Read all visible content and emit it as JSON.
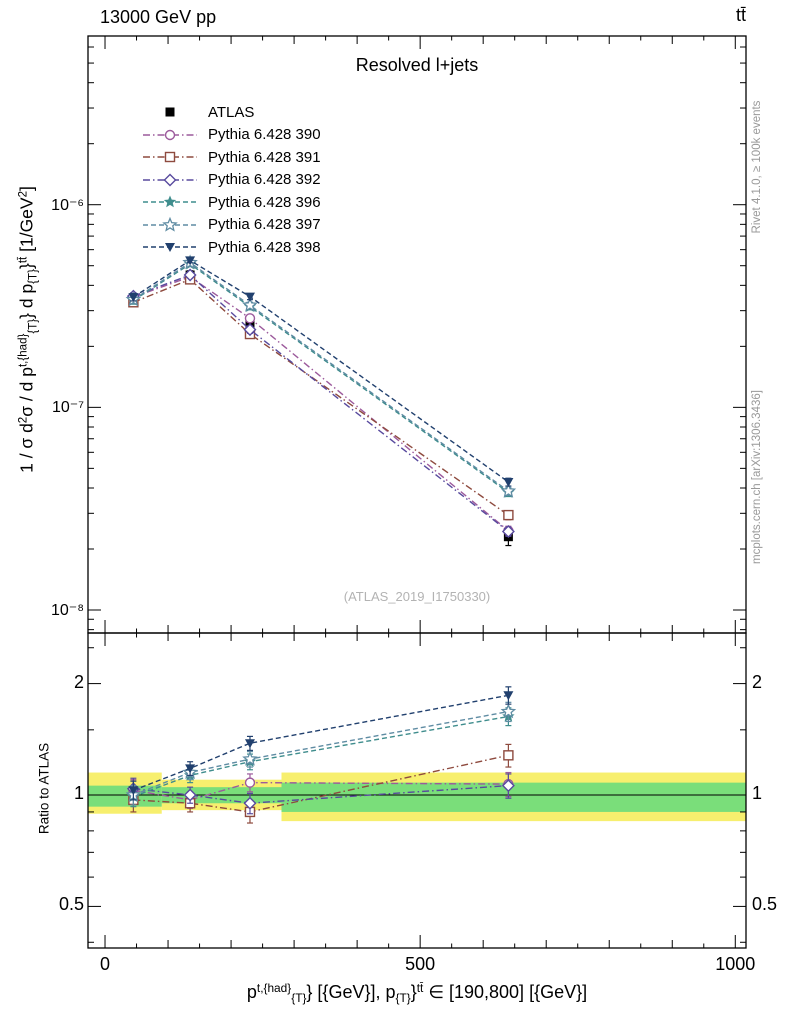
{
  "header": {
    "left": "13000 GeV pp",
    "right": "tt̄"
  },
  "panel_title": "Resolved l+jets",
  "watermark": "(ATLAS_2019_I1750330)",
  "side_captions": {
    "top": "Rivet 4.1.0, ≥ 100k events",
    "bottom": "mcplots.cern.ch [arXiv:1306.3436]"
  },
  "ratio_ylabel": "Ratio to ATLAS",
  "ylabel_rich": [
    {
      "t": "1 / σ d"
    },
    {
      "sup": "2"
    },
    {
      "t": "σ / d p"
    },
    {
      "sup": "t,{had}"
    },
    {
      "sub": "{T}"
    },
    {
      "t": "} d p"
    },
    {
      "sub": "{T}"
    },
    {
      "t": "}"
    },
    {
      "sup": "tt̄"
    },
    {
      "t": " [1/GeV"
    },
    {
      "sup": "2"
    },
    {
      "t": "]"
    }
  ],
  "xlabel_rich": [
    {
      "t": "p"
    },
    {
      "sup": "t,{had}"
    },
    {
      "sub": "{T}"
    },
    {
      "t": "} [{GeV}], p"
    },
    {
      "sub": "{T}"
    },
    {
      "t": "}"
    },
    {
      "sup": "tt̄"
    },
    {
      "t": " ∈ [190,800] [{GeV}]"
    }
  ],
  "chart_data": {
    "type": "line",
    "title": "Resolved l+jets",
    "xlabel": "p^{t,{had}}_{T}} [{GeV}], p_{T}}^{tt̄} ∈ [190,800] [{GeV}]",
    "ylabel": "1 / σ d²σ / d p^{t,{had}}_{T}} d p_{T}}^{tt̄} [1/GeV²]",
    "legend_position": "upper-left",
    "grid": false,
    "xlim": [
      -27,
      1017
    ],
    "x_points": [
      45,
      135,
      230,
      640
    ],
    "x_ticks_major": [
      0,
      500,
      1000
    ],
    "main": {
      "yscale": "log",
      "ylim": [
        7.7e-09,
        6.8e-06
      ],
      "yticks": [
        {
          "v": 1e-06,
          "label": "10⁻⁶"
        },
        {
          "v": 1e-07,
          "label": "10⁻⁷"
        },
        {
          "v": 1e-08,
          "label": "10⁻⁸"
        }
      ],
      "series": [
        {
          "name": "ATLAS",
          "color": "#000000",
          "marker": "square-filled",
          "line": "none",
          "values": [
            3.4e-07,
            4.5e-07,
            2.55e-07,
            2.3e-08
          ],
          "yerr": [
            2.5e-08,
            2.2e-08,
            1.5e-08,
            2.2e-09
          ]
        },
        {
          "name": "Pythia 6.428 390",
          "color": "#9c5a9c",
          "marker": "circle-open",
          "line": "dashdot",
          "values": [
            3.5e-07,
            4.41e-07,
            2.75e-07,
            2.46e-08
          ],
          "yerr": [
            1.4e-08,
            1.2e-08,
            1e-08,
            1.3e-09
          ]
        },
        {
          "name": "Pythia 6.428 391",
          "color": "#8e4a3e",
          "marker": "square-open",
          "line": "dashdot",
          "values": [
            3.3e-07,
            4.28e-07,
            2.3e-07,
            2.94e-08
          ],
          "yerr": [
            1.4e-08,
            1.2e-08,
            1e-08,
            1.5e-09
          ]
        },
        {
          "name": "Pythia 6.428 392",
          "color": "#584a9e",
          "marker": "diamond-open",
          "line": "dashdot",
          "values": [
            3.54e-07,
            4.5e-07,
            2.42e-07,
            2.44e-08
          ],
          "yerr": [
            1.4e-08,
            1.2e-08,
            1e-08,
            1.3e-09
          ]
        },
        {
          "name": "Pythia 6.428 396",
          "color": "#3f8d8d",
          "marker": "star-filled",
          "line": "dashed",
          "values": [
            3.37e-07,
            5.09e-07,
            3.14e-07,
            3.8e-08
          ],
          "yerr": [
            1.4e-08,
            1.3e-08,
            1.1e-08,
            1.7e-09
          ]
        },
        {
          "name": "Pythia 6.428 397",
          "color": "#5f8ca3",
          "marker": "star-open",
          "line": "dashed",
          "values": [
            3.4e-07,
            5.18e-07,
            3.19e-07,
            3.86e-08
          ],
          "yerr": [
            1.4e-08,
            1.3e-08,
            1.1e-08,
            1.7e-09
          ]
        },
        {
          "name": "Pythia 6.428 398",
          "color": "#21406e",
          "marker": "triangle-down-filled",
          "line": "dashed",
          "values": [
            3.5e-07,
            5.31e-07,
            3.52e-07,
            4.28e-08
          ],
          "yerr": [
            1.5e-08,
            1.4e-08,
            1.2e-08,
            1.9e-09
          ]
        }
      ]
    },
    "ratio": {
      "yscale": "log",
      "ylim": [
        0.386,
        2.74
      ],
      "reference": "ATLAS",
      "yticks": [
        {
          "v": 2,
          "label": "2"
        },
        {
          "v": 1,
          "label": "1"
        },
        {
          "v": 0.5,
          "label": "0.5"
        }
      ],
      "yticks_minor": [
        0.4,
        0.6,
        0.7,
        0.8,
        0.9,
        1.5,
        2.5
      ],
      "bands": {
        "yellow": {
          "color": "#f7ef6e",
          "segments": [
            {
              "x0": -27,
              "x1": 90,
              "lo": 0.89,
              "hi": 1.15
            },
            {
              "x0": 90,
              "x1": 280,
              "lo": 0.91,
              "hi": 1.1
            },
            {
              "x0": 280,
              "x1": 1017,
              "lo": 0.85,
              "hi": 1.15
            }
          ]
        },
        "green": {
          "color": "#7ade7a",
          "segments": [
            {
              "x0": -27,
              "x1": 90,
              "lo": 0.93,
              "hi": 1.06
            },
            {
              "x0": 90,
              "x1": 280,
              "lo": 0.95,
              "hi": 1.05
            },
            {
              "x0": 280,
              "x1": 1017,
              "lo": 0.9,
              "hi": 1.08
            }
          ]
        }
      },
      "series": [
        {
          "name": "Pythia 6.428 390",
          "values": [
            1.03,
            0.97,
            1.08,
            1.07
          ],
          "yerr": [
            0.07,
            0.05,
            0.06,
            0.08
          ]
        },
        {
          "name": "Pythia 6.428 391",
          "values": [
            0.97,
            0.95,
            0.9,
            1.28
          ],
          "yerr": [
            0.07,
            0.05,
            0.06,
            0.09
          ]
        },
        {
          "name": "Pythia 6.428 392",
          "values": [
            1.04,
            1.0,
            0.95,
            1.06
          ],
          "yerr": [
            0.07,
            0.05,
            0.06,
            0.08
          ]
        },
        {
          "name": "Pythia 6.428 396",
          "values": [
            0.99,
            1.13,
            1.23,
            1.63
          ],
          "yerr": [
            0.06,
            0.05,
            0.06,
            0.09
          ]
        },
        {
          "name": "Pythia 6.428 397",
          "values": [
            1.0,
            1.15,
            1.25,
            1.68
          ],
          "yerr": [
            0.06,
            0.05,
            0.06,
            0.1
          ]
        },
        {
          "name": "Pythia 6.428 398",
          "values": [
            1.03,
            1.18,
            1.38,
            1.86
          ],
          "yerr": [
            0.06,
            0.05,
            0.06,
            0.1
          ]
        }
      ]
    }
  }
}
